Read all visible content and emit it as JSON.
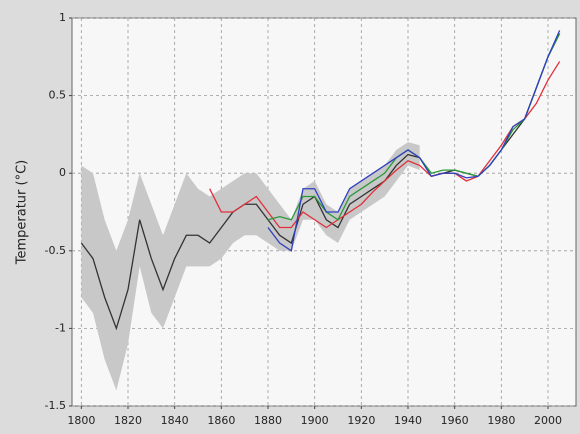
{
  "chart_data": {
    "type": "line",
    "y_label": "Temperatur (°C)",
    "x": [
      1800,
      1805,
      1810,
      1815,
      1820,
      1825,
      1830,
      1835,
      1840,
      1845,
      1850,
      1855,
      1860,
      1865,
      1870,
      1875,
      1880,
      1885,
      1890,
      1895,
      1900,
      1905,
      1910,
      1915,
      1920,
      1925,
      1930,
      1935,
      1940,
      1945,
      1950,
      1955,
      1960,
      1965,
      1970,
      1975,
      1980,
      1985,
      1990,
      1995,
      2000,
      2005
    ],
    "band": {
      "color": "#c8c8c8",
      "upper": [
        0.05,
        0.0,
        -0.3,
        -0.5,
        -0.3,
        0.0,
        -0.2,
        -0.4,
        -0.2,
        0.0,
        -0.1,
        -0.15,
        -0.1,
        -0.05,
        0.0,
        0.0,
        -0.1,
        -0.2,
        -0.3,
        -0.1,
        -0.05,
        -0.2,
        -0.25,
        -0.1,
        -0.05,
        0.0,
        0.05,
        0.15,
        0.2,
        0.18,
        null,
        null,
        null,
        null,
        null,
        null,
        null,
        null,
        null,
        null,
        null,
        null
      ],
      "lower": [
        -0.8,
        -0.9,
        -1.2,
        -1.4,
        -1.1,
        -0.6,
        -0.9,
        -1.0,
        -0.8,
        -0.6,
        -0.6,
        -0.6,
        -0.55,
        -0.45,
        -0.4,
        -0.4,
        -0.45,
        -0.5,
        -0.5,
        -0.3,
        -0.3,
        -0.4,
        -0.45,
        -0.3,
        -0.25,
        -0.2,
        -0.15,
        -0.05,
        0.05,
        0.02,
        null,
        null,
        null,
        null,
        null,
        null,
        null,
        null,
        null,
        null,
        null,
        null
      ]
    },
    "series": [
      {
        "color": "#333333",
        "values": [
          -0.45,
          -0.55,
          -0.8,
          -1.0,
          -0.75,
          -0.3,
          -0.55,
          -0.75,
          -0.55,
          -0.4,
          -0.4,
          -0.45,
          -0.35,
          -0.25,
          -0.2,
          -0.2,
          -0.3,
          -0.4,
          -0.45,
          -0.2,
          -0.15,
          -0.3,
          -0.35,
          -0.2,
          -0.15,
          -0.1,
          -0.05,
          0.05,
          0.12,
          0.1,
          -0.02,
          0.0,
          0.02,
          0.0,
          -0.02,
          0.05,
          0.15,
          0.25,
          0.35,
          0.55,
          0.75,
          0.9
        ]
      },
      {
        "color": "#e0303a",
        "values": [
          null,
          null,
          null,
          null,
          null,
          null,
          null,
          null,
          null,
          null,
          null,
          -0.1,
          -0.25,
          -0.25,
          -0.2,
          -0.15,
          -0.25,
          -0.35,
          -0.35,
          -0.25,
          -0.3,
          -0.35,
          -0.3,
          -0.25,
          -0.2,
          -0.12,
          -0.05,
          0.02,
          0.08,
          0.05,
          -0.02,
          0.0,
          0.0,
          -0.05,
          -0.02,
          0.08,
          0.18,
          0.3,
          0.35,
          0.45,
          0.6,
          0.72
        ]
      },
      {
        "color": "#2a9a3a",
        "values": [
          null,
          null,
          null,
          null,
          null,
          null,
          null,
          null,
          null,
          null,
          null,
          null,
          null,
          null,
          null,
          null,
          -0.3,
          -0.28,
          -0.3,
          -0.15,
          -0.15,
          -0.25,
          -0.3,
          -0.15,
          -0.1,
          -0.05,
          0.0,
          0.1,
          0.15,
          0.1,
          0.0,
          0.02,
          0.02,
          0.0,
          -0.02,
          0.05,
          0.15,
          0.28,
          0.35,
          0.55,
          0.75,
          0.9
        ]
      },
      {
        "color": "#3040c0",
        "values": [
          null,
          null,
          null,
          null,
          null,
          null,
          null,
          null,
          null,
          null,
          null,
          null,
          null,
          null,
          null,
          null,
          -0.35,
          -0.45,
          -0.5,
          -0.1,
          -0.1,
          -0.25,
          -0.25,
          -0.1,
          -0.05,
          0.0,
          0.05,
          0.1,
          0.15,
          0.1,
          -0.02,
          0.0,
          0.0,
          -0.03,
          -0.02,
          0.05,
          0.15,
          0.3,
          0.35,
          0.55,
          0.75,
          0.92
        ]
      }
    ],
    "xlim": [
      1796,
      2012
    ],
    "xticks": [
      1800,
      1820,
      1840,
      1860,
      1880,
      1900,
      1920,
      1940,
      1960,
      1980,
      2000
    ],
    "ylim": [
      -1.5,
      1
    ],
    "yticks": [
      -1.5,
      -1,
      -0.5,
      0,
      0.5,
      1
    ],
    "grid": true
  }
}
